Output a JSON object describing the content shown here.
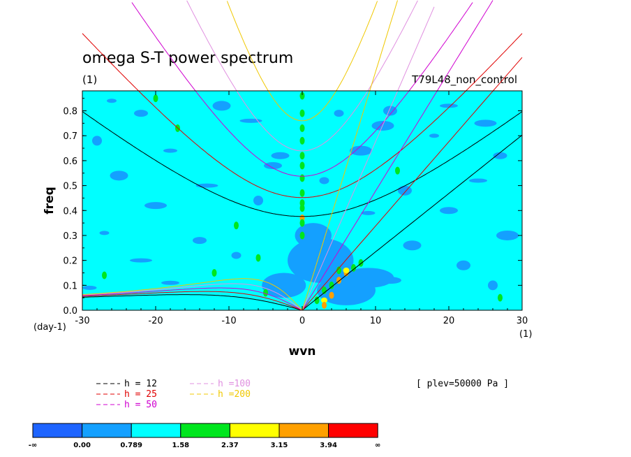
{
  "chart_data": {
    "type": "heatmap",
    "title": "omega S-T power spectrum",
    "subtitle_left": "(1)",
    "subtitle_right": "T79L48_non_control",
    "xlabel": "wvn",
    "ylabel": "freq",
    "x_unit_label": "(1)",
    "y_unit_label": "(day-1)",
    "xlim": [
      -30,
      30
    ],
    "ylim": [
      0,
      0.88
    ],
    "xticks": [
      "-30",
      "-20",
      "-10",
      "0",
      "10",
      "20",
      "30"
    ],
    "yticks": [
      "0.0",
      "0.1",
      "0.2",
      "0.3",
      "0.4",
      "0.5",
      "0.6",
      "0.7",
      "0.8"
    ],
    "annotation": "[ plev=50000 Pa ]",
    "background_level_color": "#00ffff",
    "colorbar": {
      "labels": [
        "-∞",
        "0.00",
        "0.789",
        "1.58",
        "2.37",
        "3.15",
        "3.94",
        "∞"
      ],
      "colors": [
        "#1e64ff",
        "#14a0ff",
        "#00ffff",
        "#00e61e",
        "#ffff00",
        "#ffa000",
        "#ff0000"
      ]
    },
    "dispersion_curves": [
      {
        "label": "h = 12",
        "h": 12,
        "color": "#000000"
      },
      {
        "label": "h = 25",
        "h": 25,
        "color": "#e00000"
      },
      {
        "label": "h = 50",
        "h": 50,
        "color": "#d000d0"
      },
      {
        "label": "h =100",
        "h": 100,
        "color": "#e090e0"
      },
      {
        "label": "h =200",
        "h": 200,
        "color": "#f0c800"
      }
    ],
    "hot_spots": [
      {
        "x": 0,
        "y": 0.37,
        "level": 6
      },
      {
        "x": 0,
        "y": 0.41,
        "level": 4
      },
      {
        "x": 0,
        "y": 0.43,
        "level": 4
      },
      {
        "x": 0,
        "y": 0.35,
        "level": 4
      },
      {
        "x": 0,
        "y": 0.3,
        "level": 4
      },
      {
        "x": 0,
        "y": 0.47,
        "level": 4
      },
      {
        "x": 0,
        "y": 0.53,
        "level": 4
      },
      {
        "x": 0,
        "y": 0.58,
        "level": 4
      },
      {
        "x": 0,
        "y": 0.62,
        "level": 4
      },
      {
        "x": 0,
        "y": 0.68,
        "level": 4
      },
      {
        "x": 0,
        "y": 0.73,
        "level": 4
      },
      {
        "x": 0,
        "y": 0.79,
        "level": 4
      },
      {
        "x": 0,
        "y": 0.86,
        "level": 4
      },
      {
        "x": 3,
        "y": 0.04,
        "level": 5
      },
      {
        "x": 4,
        "y": 0.06,
        "level": 6
      },
      {
        "x": 5,
        "y": 0.12,
        "level": 6
      },
      {
        "x": 6,
        "y": 0.15,
        "level": 6
      },
      {
        "x": 3,
        "y": 0.02,
        "level": 6
      },
      {
        "x": 6,
        "y": 0.16,
        "level": 5
      },
      {
        "x": 5,
        "y": 0.16,
        "level": 4
      },
      {
        "x": 7,
        "y": 0.17,
        "level": 4
      },
      {
        "x": 4,
        "y": 0.1,
        "level": 4
      },
      {
        "x": 2,
        "y": 0.04,
        "level": 4
      },
      {
        "x": 3,
        "y": 0.08,
        "level": 4
      },
      {
        "x": -20,
        "y": 0.85,
        "level": 4
      },
      {
        "x": -17,
        "y": 0.73,
        "level": 4
      },
      {
        "x": -5,
        "y": 0.07,
        "level": 4
      },
      {
        "x": -6,
        "y": 0.21,
        "level": 4
      },
      {
        "x": -9,
        "y": 0.34,
        "level": 4
      },
      {
        "x": -27,
        "y": 0.14,
        "level": 4
      },
      {
        "x": 8,
        "y": 0.19,
        "level": 4
      },
      {
        "x": 13,
        "y": 0.56,
        "level": 4
      },
      {
        "x": 27,
        "y": 0.05,
        "level": 4
      },
      {
        "x": -12,
        "y": 0.15,
        "level": 4
      }
    ],
    "low_patches": [
      {
        "x": -26,
        "y": 0.84
      },
      {
        "x": -22,
        "y": 0.79
      },
      {
        "x": -11,
        "y": 0.82
      },
      {
        "x": -7,
        "y": 0.76
      },
      {
        "x": 5,
        "y": 0.79
      },
      {
        "x": 12,
        "y": 0.8
      },
      {
        "x": 20,
        "y": 0.82
      },
      {
        "x": 25,
        "y": 0.75
      },
      {
        "x": -28,
        "y": 0.68
      },
      {
        "x": -18,
        "y": 0.64
      },
      {
        "x": -3,
        "y": 0.62
      },
      {
        "x": 8,
        "y": 0.64
      },
      {
        "x": 18,
        "y": 0.7
      },
      {
        "x": 27,
        "y": 0.62
      },
      {
        "x": -25,
        "y": 0.54
      },
      {
        "x": -13,
        "y": 0.5
      },
      {
        "x": 3,
        "y": 0.52
      },
      {
        "x": 14,
        "y": 0.48
      },
      {
        "x": 24,
        "y": 0.52
      },
      {
        "x": -20,
        "y": 0.42
      },
      {
        "x": -6,
        "y": 0.44
      },
      {
        "x": 9,
        "y": 0.39
      },
      {
        "x": 20,
        "y": 0.4
      },
      {
        "x": 28,
        "y": 0.3
      },
      {
        "x": -27,
        "y": 0.31
      },
      {
        "x": -14,
        "y": 0.28
      },
      {
        "x": 15,
        "y": 0.26
      },
      {
        "x": -22,
        "y": 0.2
      },
      {
        "x": -9,
        "y": 0.22
      },
      {
        "x": 22,
        "y": 0.18
      },
      {
        "x": -18,
        "y": 0.11
      },
      {
        "x": 12,
        "y": 0.12
      },
      {
        "x": 26,
        "y": 0.1
      },
      {
        "x": -29,
        "y": 0.09
      },
      {
        "x": -4,
        "y": 0.58
      },
      {
        "x": 11,
        "y": 0.74
      }
    ],
    "low_regions": [
      {
        "cx": 2.5,
        "cy": 0.2,
        "rx": 4.5,
        "ry": 0.09
      },
      {
        "cx": 6,
        "cy": 0.08,
        "rx": 4,
        "ry": 0.06
      },
      {
        "cx": 9,
        "cy": 0.13,
        "rx": 3.5,
        "ry": 0.04
      },
      {
        "cx": 1.5,
        "cy": 0.3,
        "rx": 2.5,
        "ry": 0.05
      },
      {
        "cx": -2.5,
        "cy": 0.1,
        "rx": 3,
        "ry": 0.05
      }
    ]
  }
}
